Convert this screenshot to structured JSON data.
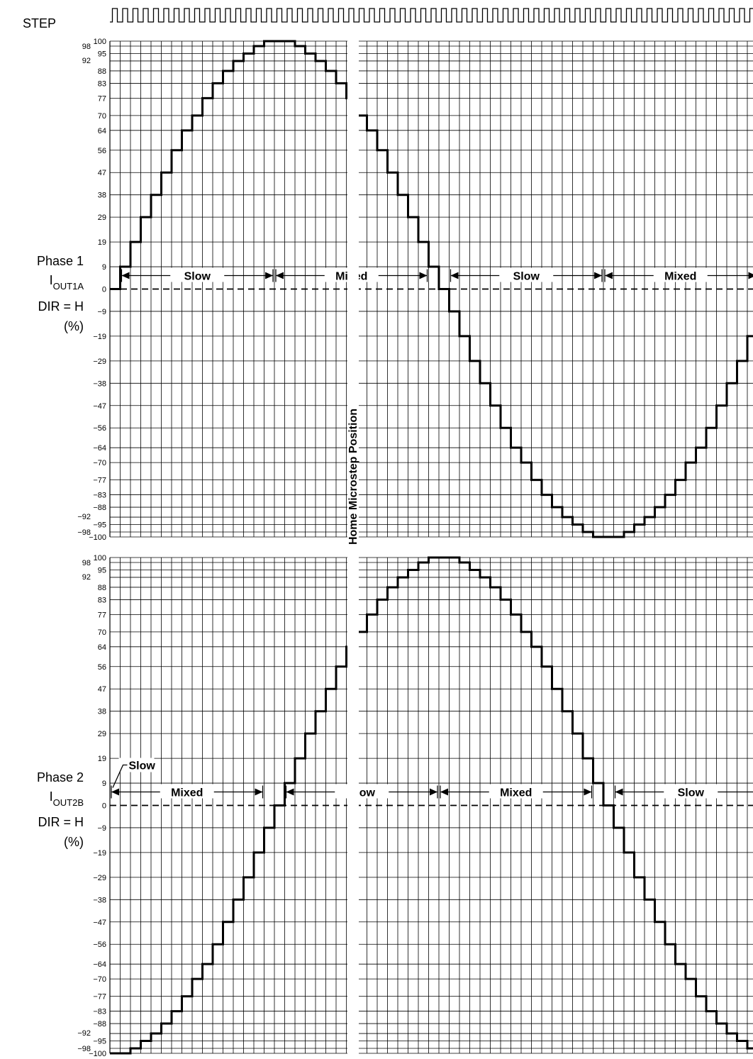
{
  "chart_data": [
    {
      "type": "line",
      "title": "",
      "step_label": "STEP",
      "ylabel": {
        "line1": "Phase 1",
        "current_main": "I",
        "current_sub": "OUT1A",
        "line3": "DIR = H",
        "line4": "(%)"
      },
      "y_tick_labels": [
        "100",
        "98",
        "95",
        "92",
        "88",
        "83",
        "77",
        "70",
        "64",
        "56",
        "47",
        "38",
        "29",
        "19",
        "9",
        "0",
        "-9",
        "-19",
        "-29",
        "-38",
        "-47",
        "-56",
        "-64",
        "-70",
        "-77",
        "-83",
        "-88",
        "-92",
        "-95",
        "-98",
        "-100"
      ],
      "ylim": [
        -100,
        100
      ],
      "xlim": [
        0,
        64
      ],
      "x_unit": "microstep",
      "grid": true,
      "series": [
        {
          "values": [
            0,
            9,
            19,
            29,
            38,
            47,
            56,
            64,
            70,
            77,
            83,
            88,
            92,
            95,
            98,
            100,
            100,
            100,
            98,
            95,
            92,
            88,
            83,
            77,
            70,
            64,
            56,
            47,
            38,
            29,
            19,
            9,
            0,
            -9,
            -19,
            -29,
            -38,
            -47,
            -56,
            -64,
            -70,
            -77,
            -83,
            -88,
            -92,
            -95,
            -98,
            -100,
            -100,
            -100,
            -98,
            -95,
            -92,
            -88,
            -83,
            -77,
            -70,
            -64,
            -56,
            -47,
            -38,
            -29,
            -19,
            -9,
            0
          ]
        }
      ],
      "decay_regions": [
        {
          "label": "Slow",
          "start": 1,
          "end": 16
        },
        {
          "label": "Mixed",
          "start": 16,
          "end": 31
        },
        {
          "label": "Slow",
          "start": 33,
          "end": 48
        },
        {
          "label": "Mixed",
          "start": 48,
          "end": 63
        }
      ]
    },
    {
      "type": "line",
      "title": "",
      "ylabel": {
        "line1": "Phase 2",
        "current_main": "I",
        "current_sub": "OUT2B",
        "line3": "DIR = H",
        "line4": "(%)"
      },
      "y_tick_labels": [
        "100",
        "98",
        "95",
        "92",
        "88",
        "83",
        "77",
        "70",
        "64",
        "56",
        "47",
        "38",
        "29",
        "19",
        "9",
        "0",
        "-9",
        "-19",
        "-29",
        "-38",
        "-47",
        "-56",
        "-64",
        "-70",
        "-77",
        "-83",
        "-88",
        "-92",
        "-95",
        "-98",
        "-100"
      ],
      "ylim": [
        -100,
        100
      ],
      "xlim": [
        0,
        64
      ],
      "x_unit": "microstep",
      "grid": true,
      "series": [
        {
          "values": [
            -100,
            -100,
            -98,
            -95,
            -92,
            -88,
            -83,
            -77,
            -70,
            -64,
            -56,
            -47,
            -38,
            -29,
            -19,
            -9,
            0,
            9,
            19,
            29,
            38,
            47,
            56,
            64,
            70,
            77,
            83,
            88,
            92,
            95,
            98,
            100,
            100,
            100,
            98,
            95,
            92,
            88,
            83,
            77,
            70,
            64,
            56,
            47,
            38,
            29,
            19,
            9,
            0,
            -9,
            -19,
            -29,
            -38,
            -47,
            -56,
            -64,
            -70,
            -77,
            -83,
            -88,
            -92,
            -95,
            -98,
            -100,
            -100
          ]
        }
      ],
      "slow_callout": "Slow",
      "decay_regions": [
        {
          "label": "Mixed",
          "start": 0,
          "end": 15
        },
        {
          "label": "Slow",
          "start": 17,
          "end": 32
        },
        {
          "label": "Mixed",
          "start": 32,
          "end": 47
        },
        {
          "label": "Slow",
          "start": 49,
          "end": 64
        }
      ]
    }
  ],
  "home_label": "Home Microstep Position",
  "home_microstep": 24,
  "step_pulses": 64
}
